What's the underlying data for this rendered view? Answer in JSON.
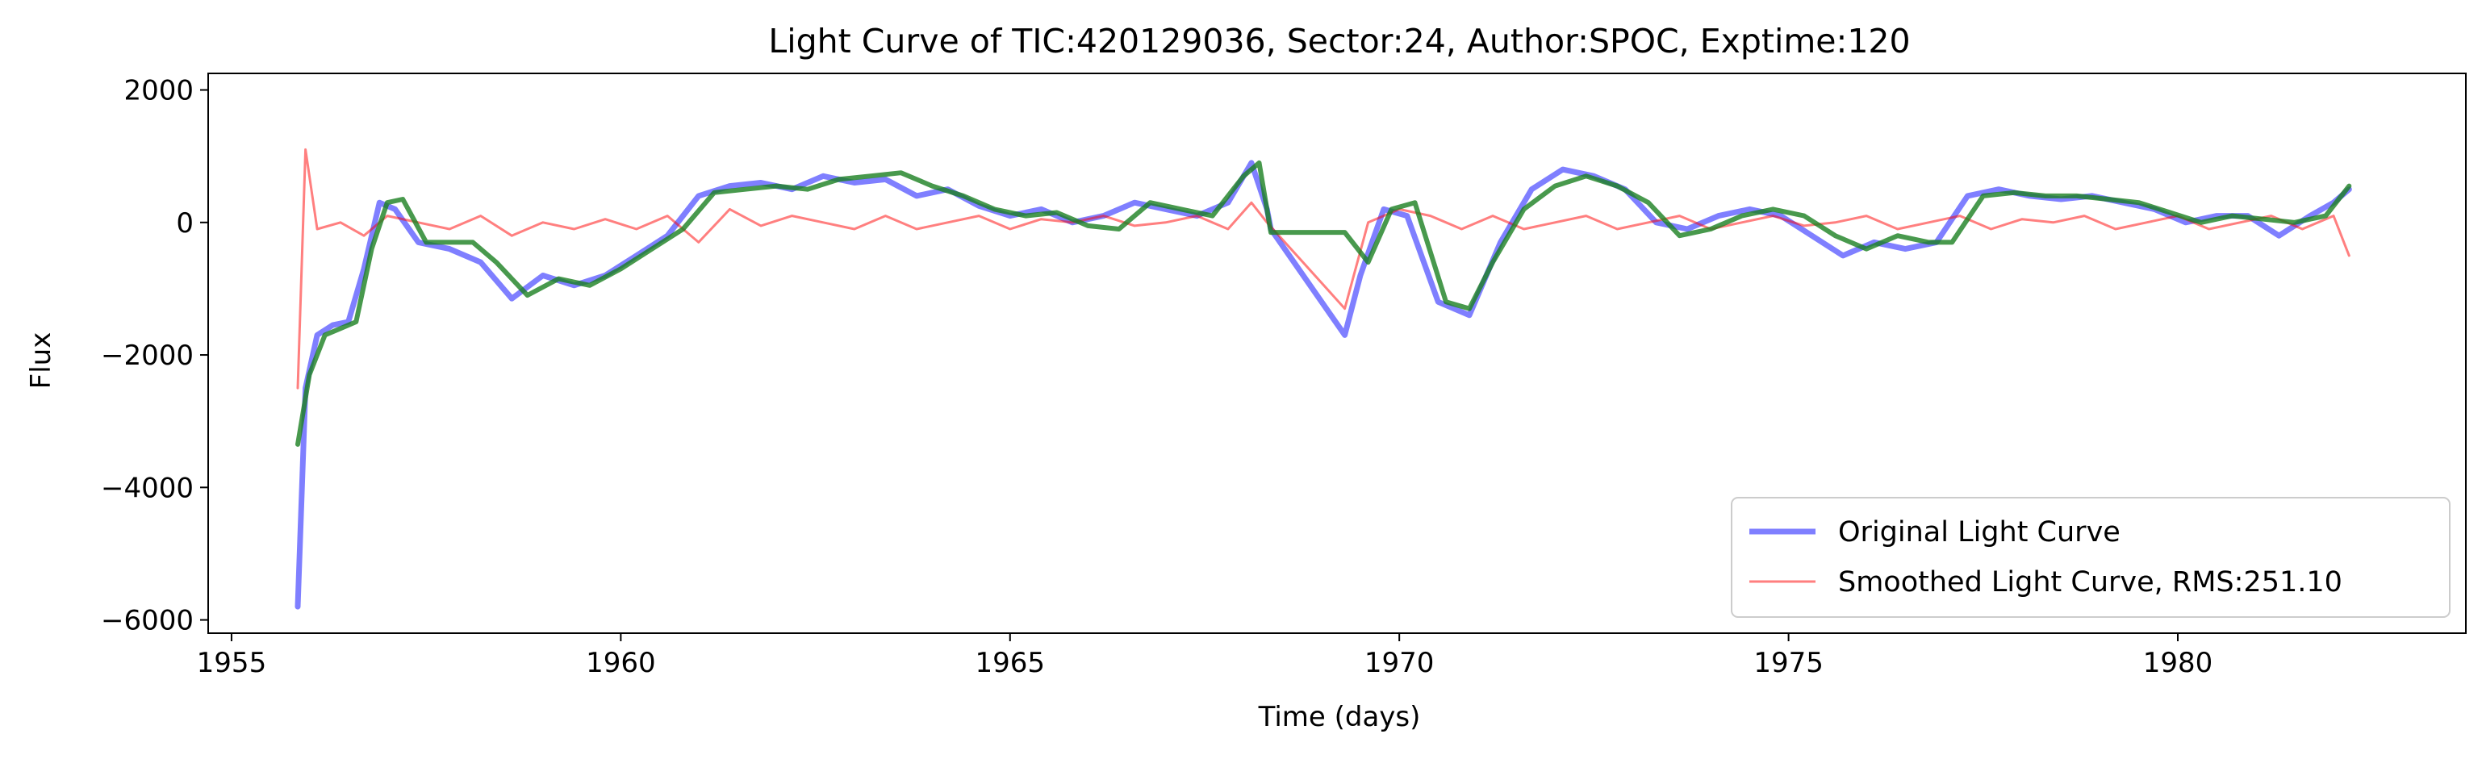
{
  "chart_data": {
    "type": "line",
    "title": "Light Curve of TIC:420129036, Sector:24, Author:SPOC, Exptime:120",
    "xlabel": "Time (days)",
    "ylabel": "Flux",
    "xlim": [
      1954.7,
      1983.7
    ],
    "ylim": [
      -6200,
      2250
    ],
    "x_ticks": [
      1955,
      1960,
      1965,
      1970,
      1975,
      1980
    ],
    "x_tick_labels": [
      "1955",
      "1960",
      "1965",
      "1970",
      "1975",
      "1980"
    ],
    "y_ticks": [
      -6000,
      -4000,
      -2000,
      0,
      2000
    ],
    "y_tick_labels": [
      "−6000",
      "−4000",
      "−2000",
      "0",
      "2000"
    ],
    "grid": false,
    "legend_position": "lower-right",
    "series": [
      {
        "name": "Original Light Curve",
        "color": "#0000ff",
        "points": [
          [
            1955.85,
            -5800
          ],
          [
            1955.95,
            -2500
          ],
          [
            1956.1,
            -1700
          ],
          [
            1956.3,
            -1550
          ],
          [
            1956.5,
            -1500
          ],
          [
            1956.7,
            -700
          ],
          [
            1956.9,
            300
          ],
          [
            1957.1,
            200
          ],
          [
            1957.4,
            -300
          ],
          [
            1957.8,
            -400
          ],
          [
            1958.2,
            -600
          ],
          [
            1958.6,
            -1150
          ],
          [
            1959.0,
            -800
          ],
          [
            1959.4,
            -950
          ],
          [
            1959.8,
            -800
          ],
          [
            1960.2,
            -500
          ],
          [
            1960.6,
            -200
          ],
          [
            1961.0,
            400
          ],
          [
            1961.4,
            550
          ],
          [
            1961.8,
            600
          ],
          [
            1962.2,
            500
          ],
          [
            1962.6,
            700
          ],
          [
            1963.0,
            600
          ],
          [
            1963.4,
            650
          ],
          [
            1963.8,
            400
          ],
          [
            1964.2,
            500
          ],
          [
            1964.6,
            250
          ],
          [
            1965.0,
            100
          ],
          [
            1965.4,
            200
          ],
          [
            1965.8,
            0
          ],
          [
            1966.2,
            100
          ],
          [
            1966.6,
            300
          ],
          [
            1967.0,
            200
          ],
          [
            1967.4,
            100
          ],
          [
            1967.8,
            300
          ],
          [
            1968.1,
            900
          ],
          [
            1968.3,
            200
          ],
          [
            1968.35,
            -100
          ],
          [
            1969.3,
            -1700
          ],
          [
            1969.5,
            -800
          ],
          [
            1969.8,
            200
          ],
          [
            1970.1,
            100
          ],
          [
            1970.5,
            -1200
          ],
          [
            1970.9,
            -1400
          ],
          [
            1971.3,
            -300
          ],
          [
            1971.7,
            500
          ],
          [
            1972.1,
            800
          ],
          [
            1972.5,
            700
          ],
          [
            1972.9,
            500
          ],
          [
            1973.3,
            0
          ],
          [
            1973.7,
            -100
          ],
          [
            1974.1,
            100
          ],
          [
            1974.5,
            200
          ],
          [
            1974.9,
            100
          ],
          [
            1975.3,
            -200
          ],
          [
            1975.7,
            -500
          ],
          [
            1976.1,
            -300
          ],
          [
            1976.5,
            -400
          ],
          [
            1976.9,
            -300
          ],
          [
            1977.3,
            400
          ],
          [
            1977.7,
            500
          ],
          [
            1978.1,
            400
          ],
          [
            1978.5,
            350
          ],
          [
            1978.9,
            400
          ],
          [
            1979.3,
            300
          ],
          [
            1979.7,
            200
          ],
          [
            1980.1,
            0
          ],
          [
            1980.5,
            100
          ],
          [
            1980.9,
            100
          ],
          [
            1981.3,
            -200
          ],
          [
            1981.7,
            100
          ],
          [
            1982.0,
            300
          ],
          [
            1982.2,
            500
          ]
        ]
      },
      {
        "name": "Smoothed Light Curve, RMS:251.10",
        "color": "#ff0000",
        "points": [
          [
            1955.85,
            -2500
          ],
          [
            1955.95,
            1100
          ],
          [
            1956.1,
            -100
          ],
          [
            1956.4,
            0
          ],
          [
            1956.7,
            -200
          ],
          [
            1957.0,
            100
          ],
          [
            1957.4,
            0
          ],
          [
            1957.8,
            -100
          ],
          [
            1958.2,
            100
          ],
          [
            1958.6,
            -200
          ],
          [
            1959.0,
            0
          ],
          [
            1959.4,
            -100
          ],
          [
            1959.8,
            50
          ],
          [
            1960.2,
            -100
          ],
          [
            1960.6,
            100
          ],
          [
            1961.0,
            -300
          ],
          [
            1961.4,
            200
          ],
          [
            1961.8,
            -50
          ],
          [
            1962.2,
            100
          ],
          [
            1962.6,
            0
          ],
          [
            1963.0,
            -100
          ],
          [
            1963.4,
            100
          ],
          [
            1963.8,
            -100
          ],
          [
            1964.2,
            0
          ],
          [
            1964.6,
            100
          ],
          [
            1965.0,
            -100
          ],
          [
            1965.4,
            50
          ],
          [
            1965.8,
            0
          ],
          [
            1966.2,
            100
          ],
          [
            1966.6,
            -50
          ],
          [
            1967.0,
            0
          ],
          [
            1967.4,
            100
          ],
          [
            1967.8,
            -100
          ],
          [
            1968.1,
            300
          ],
          [
            1968.3,
            0
          ],
          [
            1969.3,
            -1300
          ],
          [
            1969.6,
            0
          ],
          [
            1970.0,
            200
          ],
          [
            1970.4,
            100
          ],
          [
            1970.8,
            -100
          ],
          [
            1971.2,
            100
          ],
          [
            1971.6,
            -100
          ],
          [
            1972.0,
            0
          ],
          [
            1972.4,
            100
          ],
          [
            1972.8,
            -100
          ],
          [
            1973.2,
            0
          ],
          [
            1973.6,
            100
          ],
          [
            1974.0,
            -100
          ],
          [
            1974.4,
            0
          ],
          [
            1974.8,
            100
          ],
          [
            1975.2,
            -50
          ],
          [
            1975.6,
            0
          ],
          [
            1976.0,
            100
          ],
          [
            1976.4,
            -100
          ],
          [
            1976.8,
            0
          ],
          [
            1977.2,
            100
          ],
          [
            1977.6,
            -100
          ],
          [
            1978.0,
            50
          ],
          [
            1978.4,
            0
          ],
          [
            1978.8,
            100
          ],
          [
            1979.2,
            -100
          ],
          [
            1979.6,
            0
          ],
          [
            1980.0,
            100
          ],
          [
            1980.4,
            -100
          ],
          [
            1980.8,
            0
          ],
          [
            1981.2,
            100
          ],
          [
            1981.6,
            -100
          ],
          [
            1982.0,
            100
          ],
          [
            1982.2,
            -500
          ]
        ]
      },
      {
        "color": "#1a8020",
        "points": [
          [
            1955.85,
            -3350
          ],
          [
            1956.0,
            -2300
          ],
          [
            1956.2,
            -1700
          ],
          [
            1956.4,
            -1600
          ],
          [
            1956.6,
            -1500
          ],
          [
            1956.8,
            -400
          ],
          [
            1957.0,
            300
          ],
          [
            1957.2,
            350
          ],
          [
            1957.5,
            -300
          ],
          [
            1957.8,
            -300
          ],
          [
            1958.1,
            -300
          ],
          [
            1958.4,
            -600
          ],
          [
            1958.8,
            -1100
          ],
          [
            1959.2,
            -850
          ],
          [
            1959.6,
            -950
          ],
          [
            1960.0,
            -700
          ],
          [
            1960.4,
            -400
          ],
          [
            1960.8,
            -100
          ],
          [
            1961.2,
            450
          ],
          [
            1961.6,
            500
          ],
          [
            1962.0,
            550
          ],
          [
            1962.4,
            500
          ],
          [
            1962.8,
            650
          ],
          [
            1963.2,
            700
          ],
          [
            1963.6,
            750
          ],
          [
            1964.0,
            550
          ],
          [
            1964.4,
            400
          ],
          [
            1964.8,
            200
          ],
          [
            1965.2,
            100
          ],
          [
            1965.6,
            150
          ],
          [
            1966.0,
            -50
          ],
          [
            1966.4,
            -100
          ],
          [
            1966.8,
            300
          ],
          [
            1967.2,
            200
          ],
          [
            1967.6,
            100
          ],
          [
            1968.0,
            700
          ],
          [
            1968.2,
            900
          ],
          [
            1968.35,
            -150
          ],
          [
            1969.0,
            -150
          ],
          [
            1969.3,
            -150
          ],
          [
            1969.6,
            -600
          ],
          [
            1969.9,
            200
          ],
          [
            1970.2,
            300
          ],
          [
            1970.6,
            -1200
          ],
          [
            1970.9,
            -1300
          ],
          [
            1971.2,
            -600
          ],
          [
            1971.6,
            200
          ],
          [
            1972.0,
            550
          ],
          [
            1972.4,
            700
          ],
          [
            1972.8,
            550
          ],
          [
            1973.2,
            300
          ],
          [
            1973.6,
            -200
          ],
          [
            1974.0,
            -100
          ],
          [
            1974.4,
            100
          ],
          [
            1974.8,
            200
          ],
          [
            1975.2,
            100
          ],
          [
            1975.6,
            -200
          ],
          [
            1976.0,
            -400
          ],
          [
            1976.4,
            -200
          ],
          [
            1976.8,
            -300
          ],
          [
            1977.1,
            -300
          ],
          [
            1977.5,
            400
          ],
          [
            1977.9,
            450
          ],
          [
            1978.3,
            400
          ],
          [
            1978.7,
            400
          ],
          [
            1979.1,
            350
          ],
          [
            1979.5,
            300
          ],
          [
            1979.9,
            150
          ],
          [
            1980.3,
            0
          ],
          [
            1980.7,
            100
          ],
          [
            1981.1,
            50
          ],
          [
            1981.5,
            0
          ],
          [
            1981.9,
            100
          ],
          [
            1982.2,
            550
          ]
        ]
      }
    ]
  }
}
